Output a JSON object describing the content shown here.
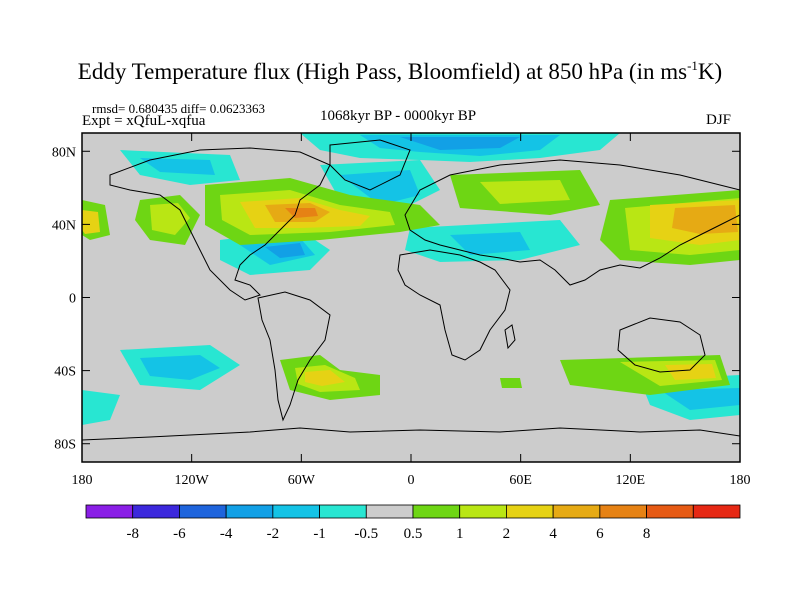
{
  "title": {
    "main": "Eddy Temperature flux (High Pass, Bloomfield) at 850 hPa (in ms",
    "sup": "-1",
    "end": "K)"
  },
  "stats_line": "rmsd= 0.680435 diff= 0.0623363",
  "experiment_line": "Expt = xQfuL-xqfua",
  "period_label": "1068kyr BP - 0000kyr BP",
  "season_label": "DJF",
  "map": {
    "lon_range": [
      -180,
      180
    ],
    "lat_range": [
      -90,
      90
    ],
    "background_color": "#cccccc",
    "lat_ticks": [
      {
        "value": 80,
        "label": "80N"
      },
      {
        "value": 40,
        "label": "40N"
      },
      {
        "value": 0,
        "label": "0"
      },
      {
        "value": -40,
        "label": "40S"
      },
      {
        "value": -80,
        "label": "80S"
      }
    ],
    "lon_ticks": [
      {
        "value": -180,
        "label": "180"
      },
      {
        "value": -120,
        "label": "120W"
      },
      {
        "value": -60,
        "label": "60W"
      },
      {
        "value": 0,
        "label": "0"
      },
      {
        "value": 60,
        "label": "60E"
      },
      {
        "value": 120,
        "label": "120E"
      },
      {
        "value": 180,
        "label": "180"
      }
    ]
  },
  "colorbar": {
    "colors": [
      "#8a1ee6",
      "#3c28dc",
      "#1e64dc",
      "#12a0e6",
      "#14c3e6",
      "#28e6d2",
      "#cccccc",
      "#6ed614",
      "#b9e614",
      "#e6d214",
      "#e6aa14",
      "#e68214",
      "#e65a14",
      "#e62814"
    ],
    "tick_labels": [
      "-8",
      "-6",
      "-4",
      "-2",
      "-1",
      "-0.5",
      "0.5",
      "1",
      "2",
      "4",
      "6",
      "8"
    ]
  }
}
